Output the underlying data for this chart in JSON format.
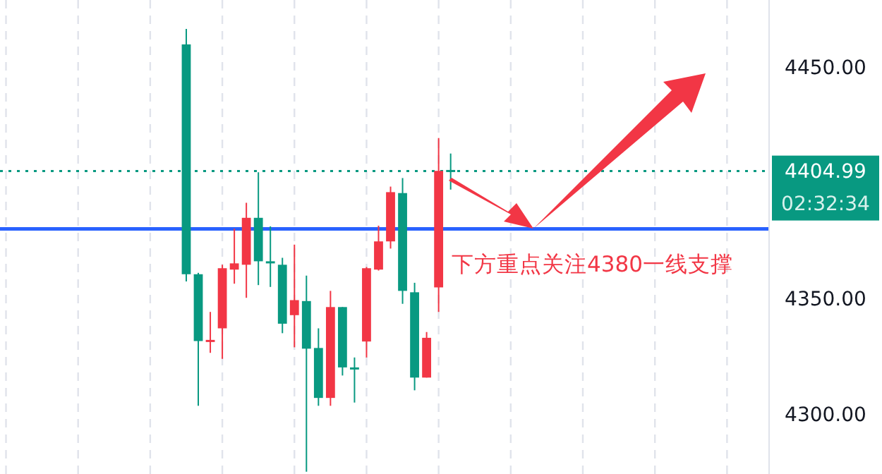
{
  "chart_data": {
    "type": "candlestick",
    "categories": [
      null,
      null,
      null,
      null,
      null,
      null,
      null,
      null,
      null,
      null,
      null,
      null,
      null,
      null,
      null,
      null,
      null,
      null,
      null,
      null,
      null,
      null,
      null,
      null,
      null,
      null,
      null,
      null,
      null,
      null,
      null,
      null,
      null,
      null,
      null,
      null,
      null,
      null,
      null,
      null,
      null,
      null,
      null,
      null,
      null,
      null,
      null,
      null,
      null,
      null,
      null,
      null,
      null,
      null,
      null,
      null,
      null,
      null,
      null,
      null,
      null,
      null,
      null,
      null
    ],
    "ohlc": [
      null,
      null,
      null,
      null,
      null,
      null,
      null,
      null,
      null,
      null,
      null,
      null,
      null,
      null,
      null,
      [
        4459.8,
        4466.5,
        4357.3,
        4360.4
      ],
      [
        4360.4,
        4361.0,
        4303.5,
        4331.5
      ],
      [
        4331.5,
        4344.1,
        4326.4,
        4332.0
      ],
      [
        4337.0,
        4364.5,
        4323.8,
        4363.0
      ],
      [
        4362.4,
        4380.1,
        4356.3,
        4365.1
      ],
      [
        4364.5,
        4391.3,
        4350.2,
        4384.8
      ],
      [
        4384.8,
        4404.5,
        4355.7,
        4366.0
      ],
      [
        4366.0,
        4381.1,
        4354.9,
        4365.5
      ],
      [
        4364.5,
        4367.5,
        4334.9,
        4339.0
      ],
      [
        4342.7,
        4373.2,
        4328.8,
        4349.2
      ],
      [
        4348.8,
        4359.8,
        4275.0,
        4328.2
      ],
      [
        4328.5,
        4337.0,
        4303.5,
        4306.9
      ],
      [
        4306.9,
        4353.2,
        4303.5,
        4346.2
      ],
      [
        4346.2,
        4346.2,
        4316.6,
        4320.1
      ],
      [
        4320.1,
        4324.4,
        4304.9,
        4319.7
      ],
      [
        4331.3,
        4363.5,
        4324.4,
        4363.0
      ],
      [
        4362.4,
        4381.4,
        4362.0,
        4374.6
      ],
      [
        4374.6,
        4398.3,
        4371.5,
        4395.9
      ],
      [
        4395.5,
        4402.0,
        4347.6,
        4353.2
      ],
      [
        4352.6,
        4356.7,
        4310.2,
        4315.7
      ],
      [
        4315.7,
        4335.4,
        4315.7,
        4332.9
      ],
      [
        4354.7,
        4419.3,
        4344.1,
        4405.1
      ],
      [
        4405.5,
        4412.6,
        4397.0,
        4404.99
      ],
      null,
      null,
      null,
      null,
      null,
      null,
      null,
      null,
      null,
      null,
      null,
      null,
      null,
      null,
      null,
      null,
      null,
      null,
      null,
      null,
      null,
      null,
      null,
      null,
      null,
      null
    ],
    "ylim": [
      4274,
      4479
    ],
    "yticks": [
      {
        "value": 4300,
        "label": "4300.00"
      },
      {
        "value": 4350,
        "label": "4350.00"
      },
      {
        "value": 4450,
        "label": "4450.00"
      }
    ],
    "grid": "x",
    "ref_lines": [
      {
        "axis": "y",
        "value": 4404.99,
        "label": "4404.99",
        "color": "#089981",
        "line_style": "dotted"
      },
      {
        "axis": "y",
        "value": 4380,
        "color": "#2962ff",
        "line_style": "solid"
      }
    ],
    "annotations": [
      "02:32:34",
      {
        "text": "下方重点关注4380一线支撑",
        "y": 4380
      }
    ]
  }
}
